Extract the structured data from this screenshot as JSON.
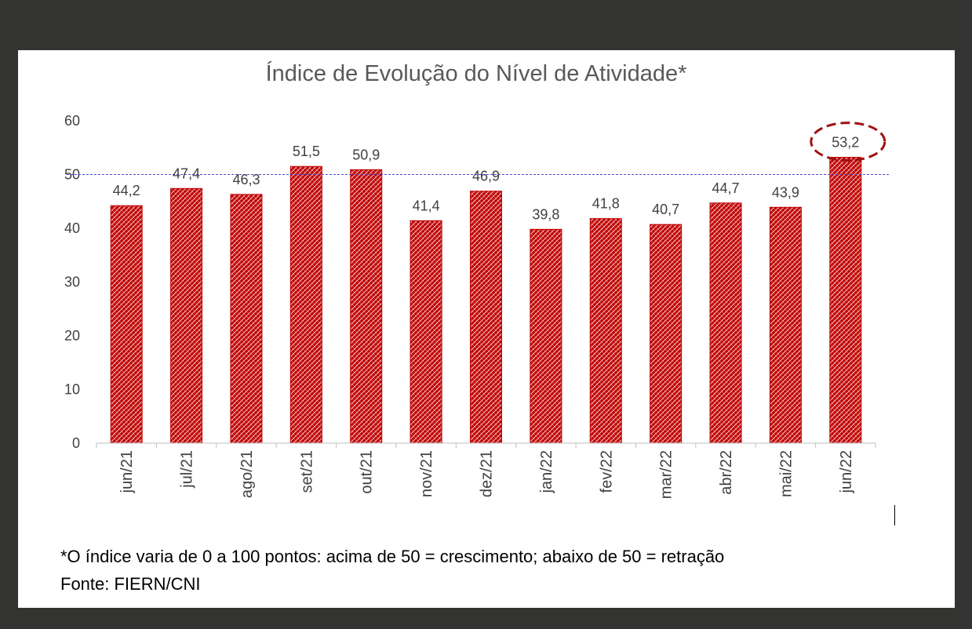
{
  "chart_data": {
    "type": "bar",
    "title": "Índice de Evolução do Nível de Atividade*",
    "categories": [
      "jun/21",
      "jul/21",
      "ago/21",
      "set/21",
      "out/21",
      "nov/21",
      "dez/21",
      "jan/22",
      "fev/22",
      "mar/22",
      "abr/22",
      "mai/22",
      "jun/22"
    ],
    "values": [
      44.2,
      47.4,
      46.3,
      51.5,
      50.9,
      41.4,
      46.9,
      39.8,
      41.8,
      40.7,
      44.7,
      43.9,
      53.2
    ],
    "value_labels": [
      "44,2",
      "47,4",
      "46,3",
      "51,5",
      "50,9",
      "41,4",
      "46,9",
      "39,8",
      "41,8",
      "40,7",
      "44,7",
      "43,9",
      "53,2"
    ],
    "ylim": [
      0,
      60
    ],
    "yticks": [
      0,
      10,
      20,
      30,
      40,
      50,
      60
    ],
    "xlabel": "",
    "ylabel": "",
    "reference_line": 50,
    "highlighted_category": "jun/22",
    "grid": false,
    "bar_color": "#c00000",
    "reference_line_color": "#4b4bd4",
    "highlight_color": "#a01010"
  },
  "footnote": {
    "note": "*O índice varia de 0 a 100 pontos: acima de 50 = crescimento; abaixo de 50 = retração",
    "source": "Fonte: FIERN/CNI"
  }
}
